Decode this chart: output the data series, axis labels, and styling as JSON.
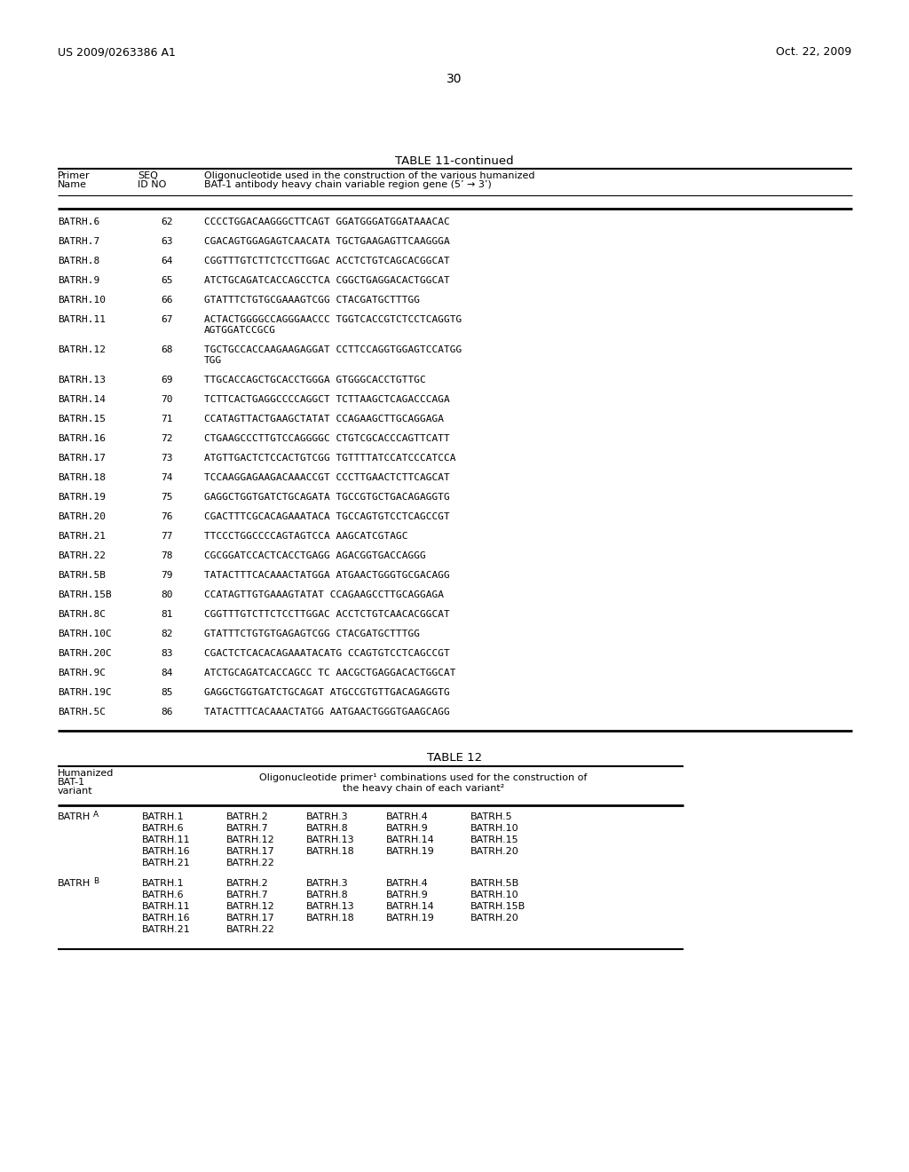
{
  "header_left": "US 2009/0263386 A1",
  "header_right": "Oct. 22, 2009",
  "page_number": "30",
  "table11_title": "TABLE 11-continued",
  "table12_title": "TABLE 12",
  "table11_rows": [
    [
      "BATRH.6",
      "62",
      "CCCCTGGACAAGGGCTTCAGT GGATGGGATGGATAAACAC",
      false
    ],
    [
      "BATRH.7",
      "63",
      "CGACAGTGGAGAGTCAACATA TGCTGAAGAGTTCAAGGGA",
      false
    ],
    [
      "BATRH.8",
      "64",
      "CGGTTTGTCTTCTCCTTGGAC ACCTCTGTCAGCACGGCAT",
      false
    ],
    [
      "BATRH.9",
      "65",
      "ATCTGCAGATCACCAGCCTCA CGGCTGAGGACACTGGCAT",
      false
    ],
    [
      "BATRH.10",
      "66",
      "GTATTTCTGTGCGAAAGTCGG CTACGATGCTTTGG",
      false
    ],
    [
      "BATRH.11",
      "67",
      "ACTACTGGGGCCAGGGAACCC TGGTCACCGTCTCCTCAGGTG",
      "AGTGGATCCGCG"
    ],
    [
      "BATRH.12",
      "68",
      "TGCTGCCACCAAGAAGAGGAT CCTTCCAGGTGGAGTCCATGG",
      "TGG"
    ],
    [
      "BATRH.13",
      "69",
      "TTGCACCAGCTGCACCTGGGA GTGGGCACCTGTTGC",
      false
    ],
    [
      "BATRH.14",
      "70",
      "TCTTCACTGAGGCCCCAGGCT TCTTAAGCTCAGACCCAGA",
      false
    ],
    [
      "BATRH.15",
      "71",
      "CCATAGTTACTGAAGCTATAT CCAGAAGCTTGCAGGAGA",
      false
    ],
    [
      "BATRH.16",
      "72",
      "CTGAAGCCCTTGTCCAGGGGC CTGTCGCACCCAGTTCATT",
      false
    ],
    [
      "BATRH.17",
      "73",
      "ATGTTGACTCTCCACTGTCGG TGTTTTATCCATCCCATCCA",
      false
    ],
    [
      "BATRH.18",
      "74",
      "TCCAAGGAGAAGACAAACCGT CCCTTGAACTCTTCAGCAT",
      false
    ],
    [
      "BATRH.19",
      "75",
      "GAGGCTGGTGATCTGCAGATA TGCCGTGCTGACAGAGGTG",
      false
    ],
    [
      "BATRH.20",
      "76",
      "CGACTTTCGCACAGAAATACA TGCCAGTGTCCTCAGCCGT",
      false
    ],
    [
      "BATRH.21",
      "77",
      "TTCCCTGGCCCCAGTAGTCCA AAGCATCGTAGC",
      false
    ],
    [
      "BATRH.22",
      "78",
      "CGCGGATCCACTCACCTGAGG AGACGGTGACCAGGG",
      false
    ],
    [
      "BATRH.5B",
      "79",
      "TATACTTTCACAAACTATGGA ATGAACTGGGTGCGACAGG",
      false
    ],
    [
      "BATRH.15B",
      "80",
      "CCATAGTTGTGAAAGTATAT CCAGAAGCCTTGCAGGAGA",
      false
    ],
    [
      "BATRH.8C",
      "81",
      "CGGTTTGTCTTCTCCTTGGAC ACCTCTGTCAACACGGCAT",
      false
    ],
    [
      "BATRH.10C",
      "82",
      "GTATTTCTGTGTGAGAGTCGG CTACGATGCTTTGG",
      false
    ],
    [
      "BATRH.20C",
      "83",
      "CGACTCTCACACAGAAATACATG CCAGTGTCCTCAGCCGT",
      false
    ],
    [
      "BATRH.9C",
      "84",
      "ATCTGCAGATCACCAGCC TC AACGCTGAGGACACTGGCAT",
      false
    ],
    [
      "BATRH.19C",
      "85",
      "GAGGCTGGTGATCTGCAGAT ATGCCGTGTTGACAGAGGTG",
      false
    ],
    [
      "BATRH.5C",
      "86",
      "TATACTTTCACAAACTATGG AATGAACTGGGTGAAGCAGG",
      false
    ]
  ],
  "table12_rows_A": [
    [
      "BATRH.1",
      "BATRH.2",
      "BATRH.3",
      "BATRH.4",
      "BATRH.5"
    ],
    [
      "BATRH.6",
      "BATRH.7",
      "BATRH.8",
      "BATRH.9",
      "BATRH.10"
    ],
    [
      "BATRH.11",
      "BATRH.12",
      "BATRH.13",
      "BATRH.14",
      "BATRH.15"
    ],
    [
      "BATRH.16",
      "BATRH.17",
      "BATRH.18",
      "BATRH.19",
      "BATRH.20"
    ],
    [
      "BATRH.21",
      "BATRH.22",
      "",
      "",
      ""
    ]
  ],
  "table12_rows_B": [
    [
      "BATRH.1",
      "BATRH.2",
      "BATRH.3",
      "BATRH.4",
      "BATRH.5B"
    ],
    [
      "BATRH.6",
      "BATRH.7",
      "BATRH.8",
      "BATRH.9",
      "BATRH.10"
    ],
    [
      "BATRH.11",
      "BATRH.12",
      "BATRH.13",
      "BATRH.14",
      "BATRH.15B"
    ],
    [
      "BATRH.16",
      "BATRH.17",
      "BATRH.18",
      "BATRH.19",
      "BATRH.20"
    ],
    [
      "BATRH.21",
      "BATRH.22",
      "",
      "",
      ""
    ]
  ]
}
